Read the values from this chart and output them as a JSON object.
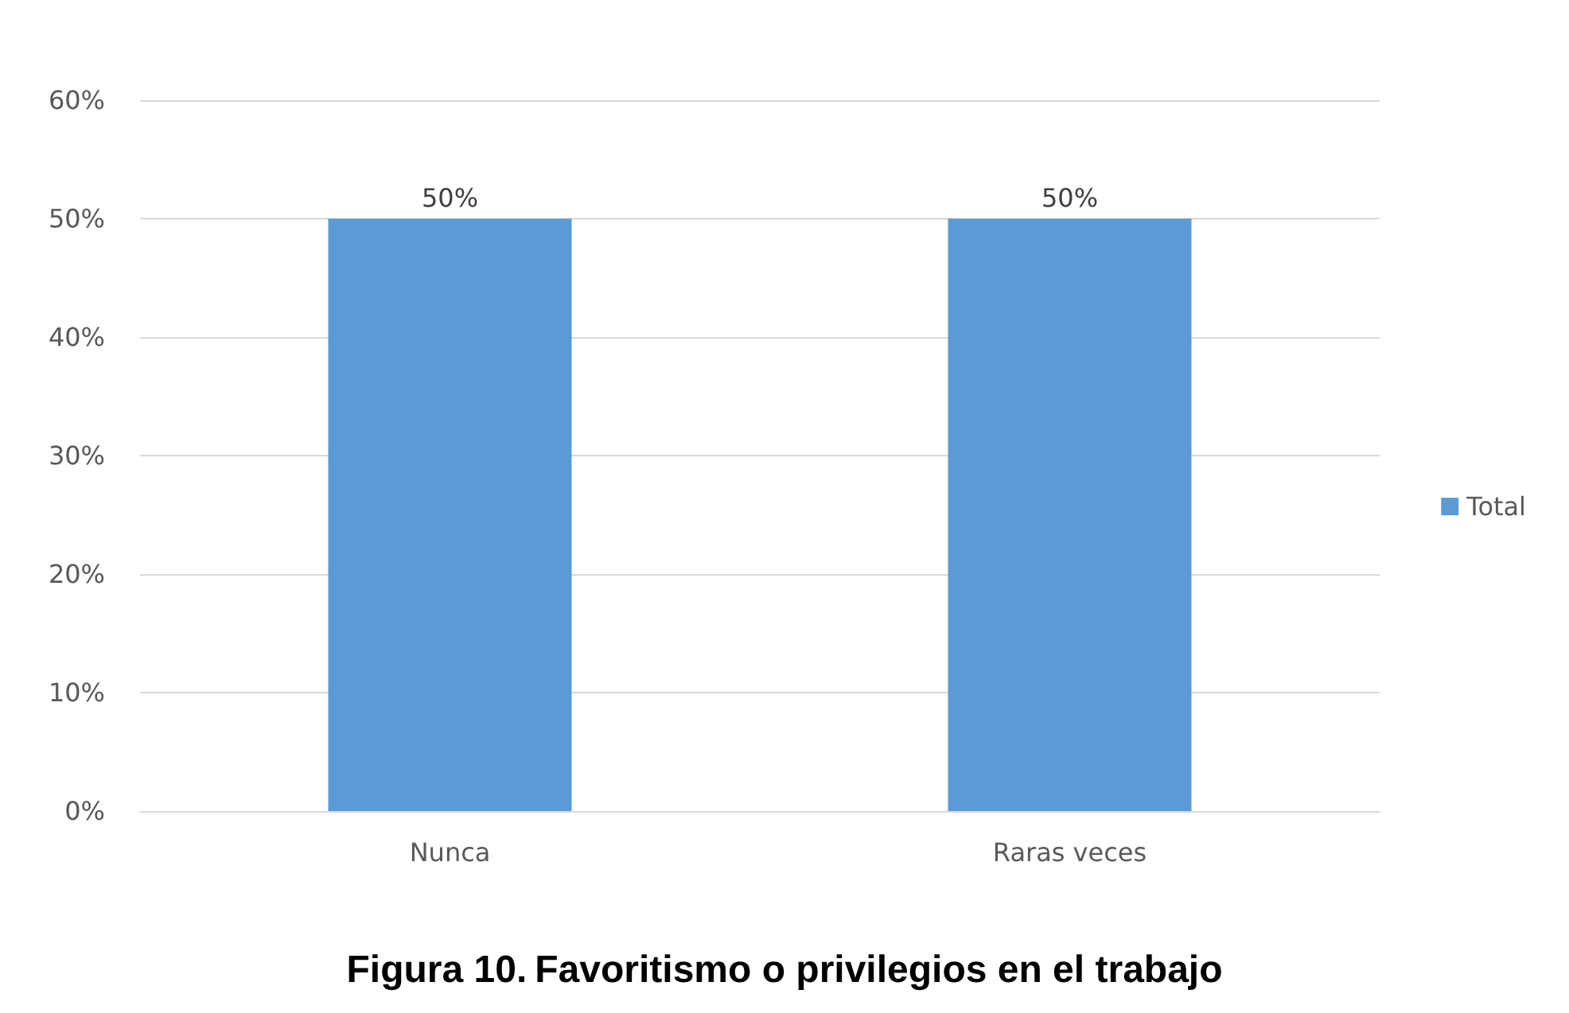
{
  "chart_data": {
    "type": "bar",
    "title": "Figura 10. Favoritismo o privilegios en el trabajo",
    "categories": [
      "Nunca",
      "Raras veces"
    ],
    "series": [
      {
        "name": "Total",
        "color": "#5b9bd5",
        "values": [
          50,
          50
        ],
        "value_labels": [
          "50%",
          "50%"
        ]
      }
    ],
    "ylim": [
      0,
      60
    ],
    "yticks": [
      {
        "value": 0,
        "label": "0%"
      },
      {
        "value": 10,
        "label": "10%"
      },
      {
        "value": 20,
        "label": "20%"
      },
      {
        "value": 30,
        "label": "30%"
      },
      {
        "value": 40,
        "label": "40%"
      },
      {
        "value": 50,
        "label": "50%"
      },
      {
        "value": 60,
        "label": "60%"
      }
    ],
    "grid": "y",
    "legend": "right"
  }
}
